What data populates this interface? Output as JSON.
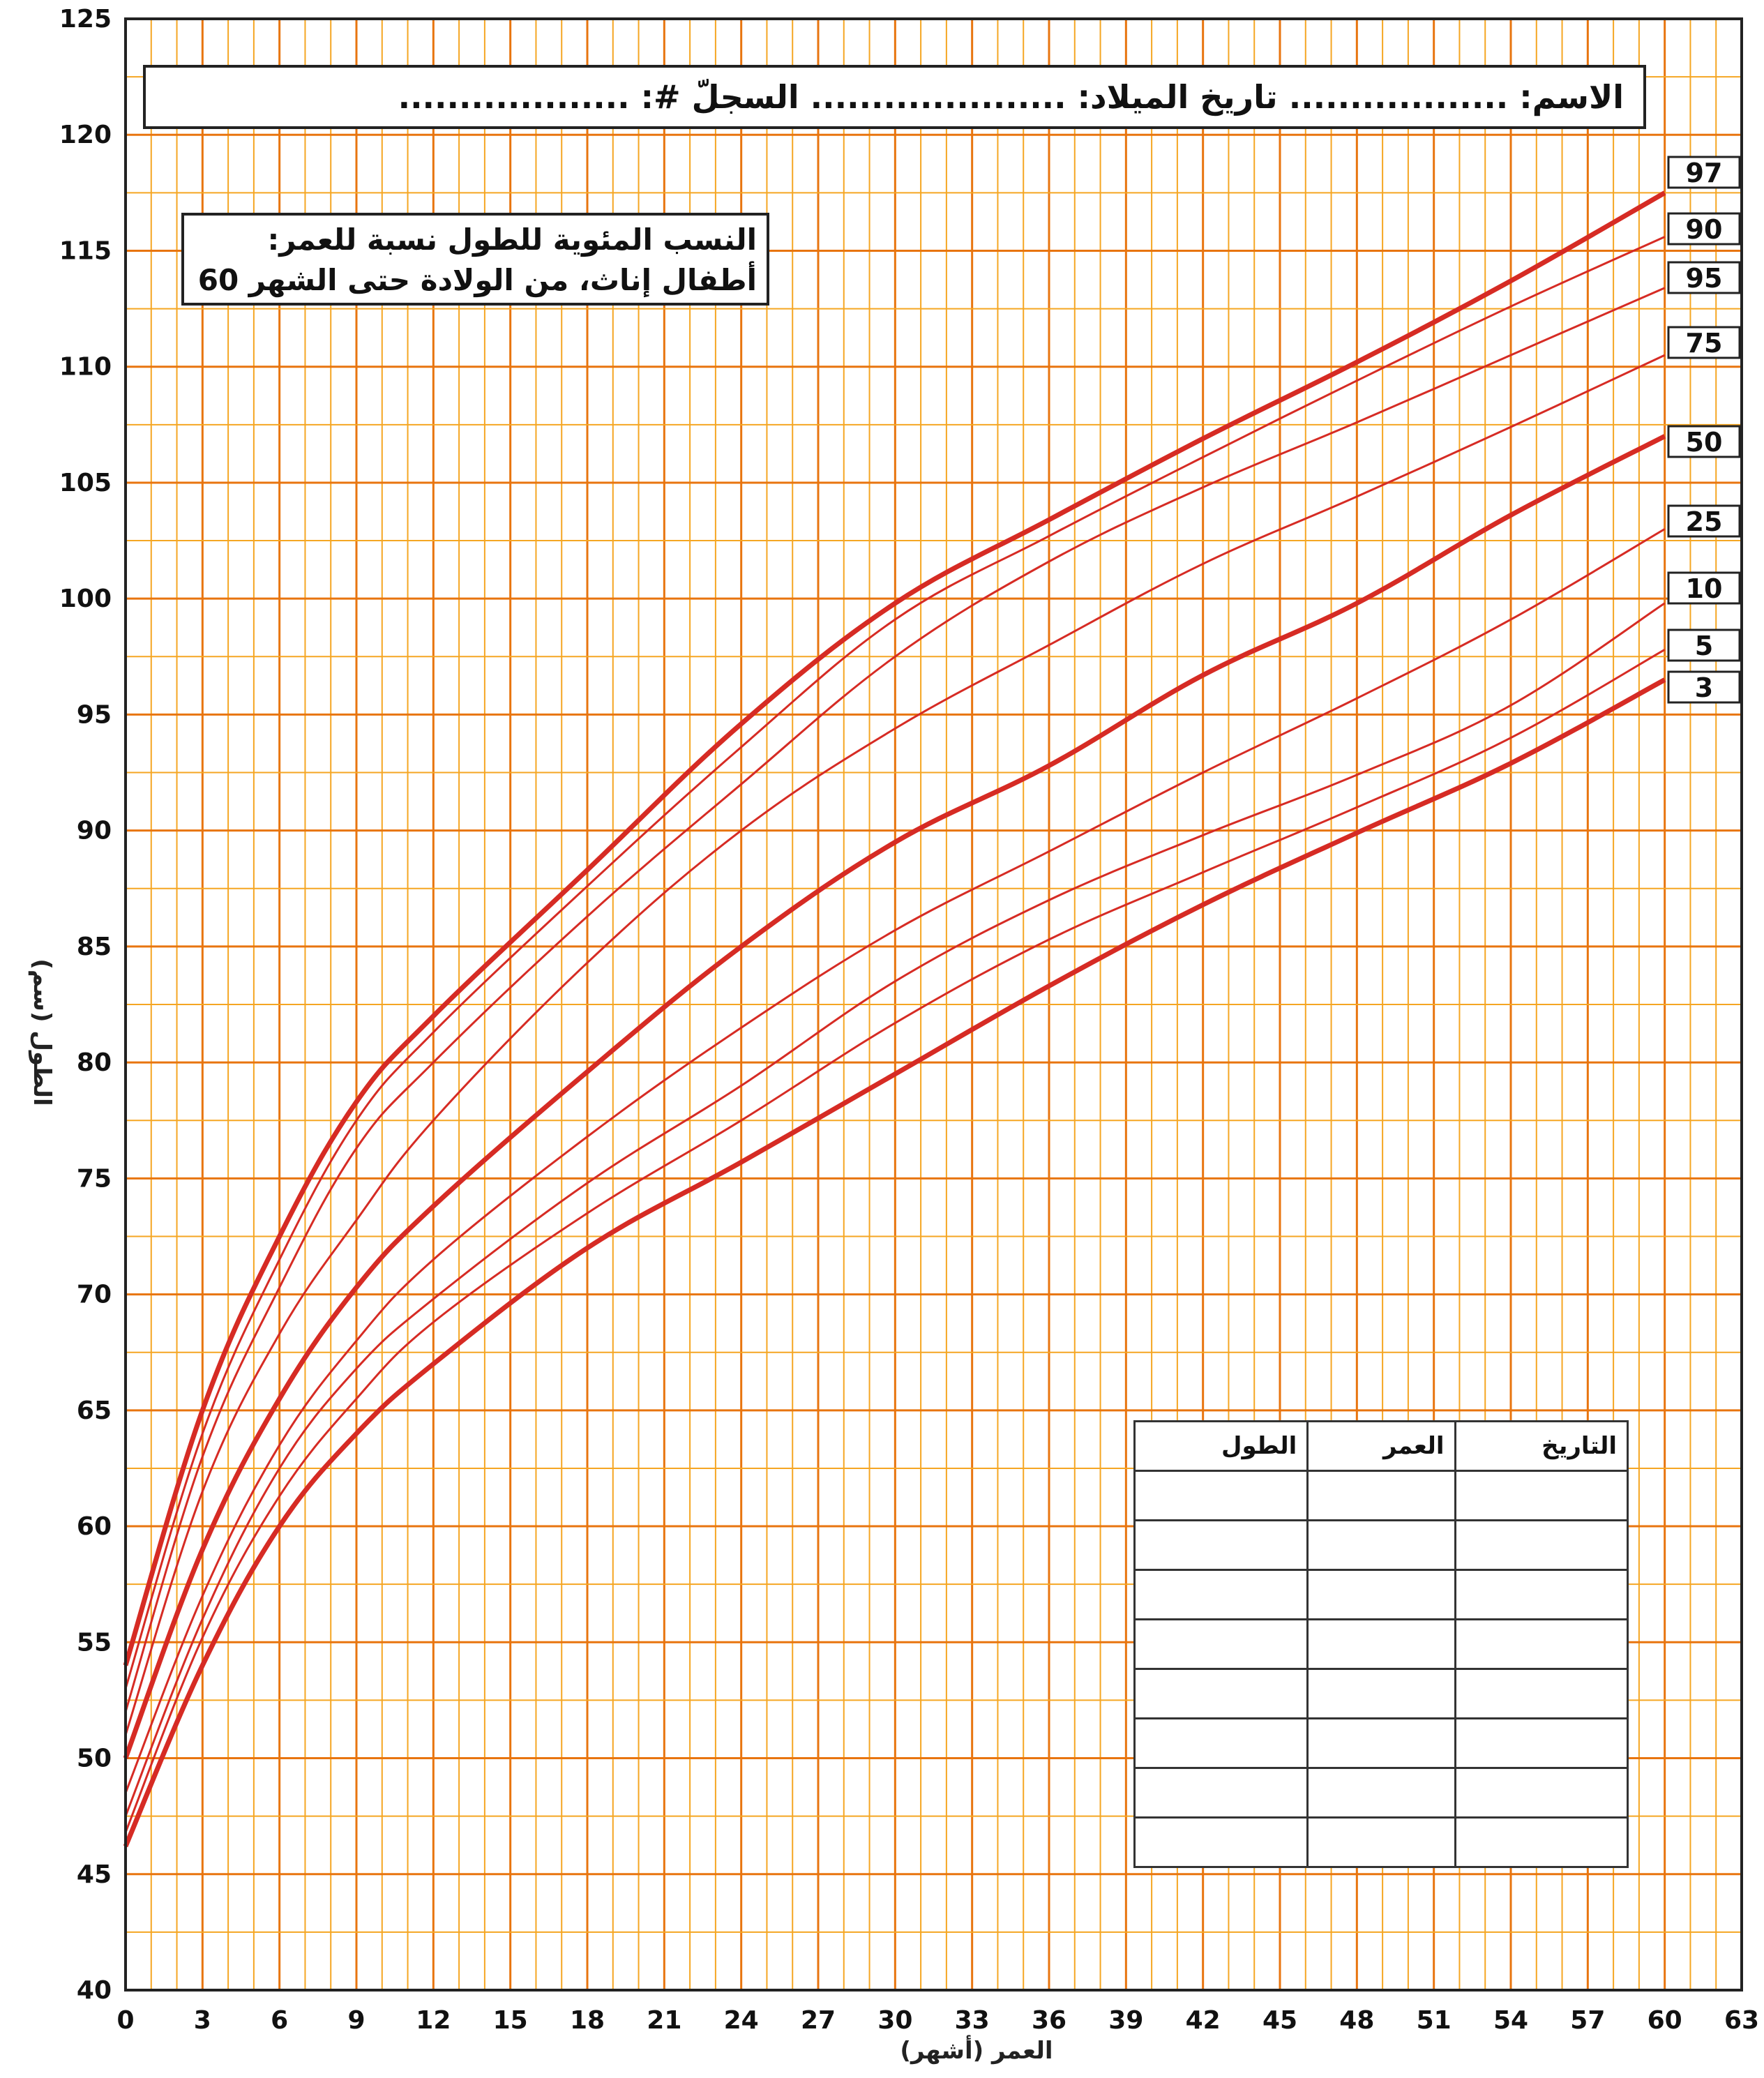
{
  "header": {
    "text": "الاسم: .................. تاريخ الميلاد: ..................... السجلّ #: ..................."
  },
  "title": {
    "line1": "النسب المئوية للطول نسبة للعمر:",
    "line2": "أطفال إناث، من الولادة حتى الشهر 60"
  },
  "table": {
    "headers": [
      "التاريخ",
      "العمر",
      "الطول"
    ],
    "empty_rows": 8
  },
  "colors": {
    "background": "#ffffff",
    "grid_minor": "#f5a623",
    "grid_major": "#e8750f",
    "curve": "#d62b24",
    "frame": "#222222"
  },
  "chart_data": {
    "type": "line",
    "xlabel": "العمر (أشهر)",
    "ylabel": "الطول (سم)",
    "xlim": [
      0,
      63
    ],
    "ylim": [
      40,
      125
    ],
    "x_ticks": [
      0,
      3,
      6,
      9,
      12,
      15,
      18,
      21,
      24,
      27,
      30,
      33,
      36,
      39,
      42,
      45,
      48,
      51,
      54,
      57,
      60,
      63
    ],
    "y_ticks": [
      40,
      45,
      50,
      55,
      60,
      65,
      70,
      75,
      80,
      85,
      90,
      95,
      100,
      105,
      110,
      115,
      120,
      125
    ],
    "grid": true,
    "x": [
      0,
      3,
      6,
      9,
      12,
      18,
      24,
      30,
      36,
      42,
      48,
      54,
      60
    ],
    "series": [
      {
        "name": "97",
        "bold": true,
        "values": [
          54.0,
          65.0,
          72.5,
          78.3,
          82.0,
          88.3,
          94.6,
          99.8,
          103.4,
          106.9,
          110.2,
          113.7,
          117.5
        ]
      },
      {
        "name": "90",
        "bold": false,
        "values": [
          53.0,
          64.0,
          71.5,
          77.5,
          81.3,
          87.6,
          93.6,
          99.1,
          102.7,
          106.1,
          109.4,
          112.6,
          115.6
        ]
      },
      {
        "name": "95",
        "bold": false,
        "values": [
          52.0,
          63.0,
          70.3,
          76.3,
          80.0,
          86.3,
          92.0,
          97.5,
          101.6,
          104.8,
          107.6,
          110.5,
          113.4
        ]
      },
      {
        "name": "75",
        "bold": false,
        "values": [
          51.0,
          61.5,
          68.3,
          73.2,
          77.5,
          84.3,
          90.0,
          94.4,
          98.0,
          101.5,
          104.4,
          107.4,
          110.5
        ]
      },
      {
        "name": "50",
        "bold": true,
        "values": [
          50.0,
          59.0,
          65.5,
          70.3,
          73.8,
          79.6,
          85.0,
          89.5,
          92.8,
          96.7,
          99.8,
          103.6,
          107.0
        ]
      },
      {
        "name": "25",
        "bold": false,
        "values": [
          48.5,
          57.0,
          63.5,
          68.0,
          71.5,
          76.8,
          81.5,
          85.7,
          89.1,
          92.5,
          95.7,
          99.1,
          103.0
        ]
      },
      {
        "name": "10",
        "bold": false,
        "values": [
          47.5,
          56.0,
          62.5,
          66.8,
          69.8,
          74.8,
          79.0,
          83.5,
          87.0,
          89.8,
          92.4,
          95.4,
          99.8
        ]
      },
      {
        "name": "5",
        "bold": false,
        "values": [
          46.8,
          55.2,
          61.3,
          65.5,
          68.8,
          73.5,
          77.5,
          81.7,
          85.3,
          88.2,
          91.0,
          94.0,
          97.8
        ]
      },
      {
        "name": "3",
        "bold": true,
        "values": [
          46.2,
          54.0,
          60.0,
          64.0,
          67.0,
          72.0,
          75.7,
          79.5,
          83.3,
          86.8,
          89.9,
          92.9,
          96.5
        ]
      }
    ]
  }
}
